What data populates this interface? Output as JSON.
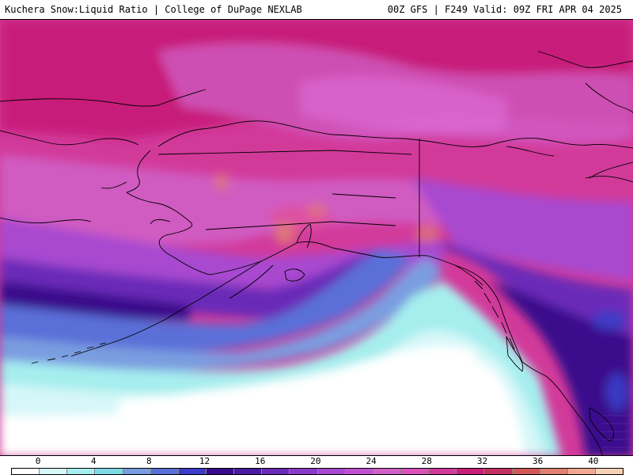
{
  "header": {
    "title_left": "Kuchera Snow:Liquid Ratio | College of DuPage NEXLAB",
    "title_right": "00Z GFS | F249 Valid: 09Z FRI APR 04 2025"
  },
  "legend": {
    "labels": [
      {
        "value": "0",
        "pos": 0
      },
      {
        "value": "4",
        "pos": 4
      },
      {
        "value": "8",
        "pos": 8
      },
      {
        "value": "12",
        "pos": 12
      },
      {
        "value": "16",
        "pos": 16
      },
      {
        "value": "20",
        "pos": 20
      },
      {
        "value": "24",
        "pos": 24
      },
      {
        "value": "28",
        "pos": 28
      },
      {
        "value": "32",
        "pos": 32
      },
      {
        "value": "36",
        "pos": 36
      },
      {
        "value": "40",
        "pos": 40
      }
    ],
    "min": 0,
    "max": 44,
    "colors": [
      "#ffffff",
      "#d6f7f8",
      "#a6eeee",
      "#7fd8e6",
      "#7a9de0",
      "#5a6fd8",
      "#3c3cc8",
      "#3a0a8c",
      "#4a1aa0",
      "#6a2ab8",
      "#8a3ac8",
      "#a848d0",
      "#c050d0",
      "#d060c8",
      "#d850b8",
      "#d23a9a",
      "#c81e7a",
      "#c03060",
      "#d05858",
      "#e08070",
      "#f0a890",
      "#f8d0b8"
    ]
  },
  "map": {
    "colors": {
      "white": "#ffffff",
      "cyan_light": "#d6f7f8",
      "cyan": "#a6eeee",
      "blue_light": "#7fd8e6",
      "blue": "#7a9de0",
      "blue_mid": "#5a6fd8",
      "blue_dark": "#3c3cc8",
      "indigo": "#3a0a8c",
      "purple": "#6a2ab8",
      "violet": "#a848d0",
      "orchid": "#d060c8",
      "magenta": "#d23a9a",
      "pink": "#e050a0",
      "peach": "#e08070"
    }
  }
}
